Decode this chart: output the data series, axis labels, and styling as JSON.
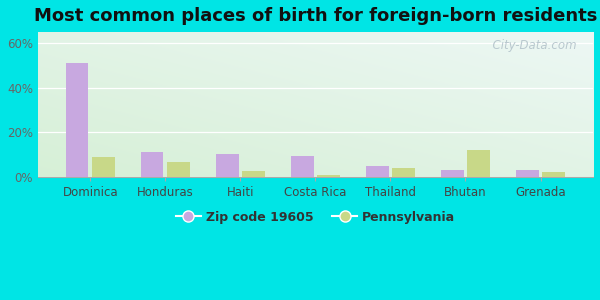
{
  "title": "Most common places of birth for foreign-born residents",
  "categories": [
    "Dominica",
    "Honduras",
    "Haiti",
    "Costa Rica",
    "Thailand",
    "Bhutan",
    "Grenada"
  ],
  "zip_values": [
    51,
    11,
    10.5,
    9.5,
    5,
    3,
    3
  ],
  "pa_values": [
    9,
    6.5,
    2.5,
    0.8,
    4,
    12,
    2
  ],
  "zip_color": "#c8a8e0",
  "pa_color": "#c8d888",
  "background_outer": "#00e5e5",
  "ylim": [
    0,
    65
  ],
  "yticks": [
    0,
    20,
    40,
    60
  ],
  "ytick_labels": [
    "0%",
    "20%",
    "40%",
    "60%"
  ],
  "legend_zip_label": "Zip code 19605",
  "legend_pa_label": "Pennsylvania",
  "watermark": "  City-Data.com",
  "title_fontsize": 13,
  "tick_fontsize": 8.5,
  "legend_fontsize": 9,
  "xticklabel_color": "#444444"
}
